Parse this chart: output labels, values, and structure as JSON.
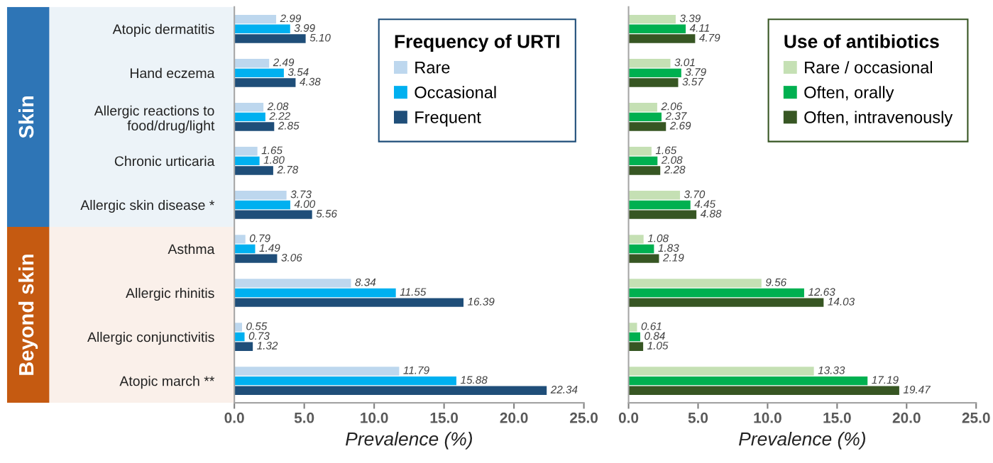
{
  "chart_data": [
    {
      "type": "bar",
      "orientation": "horizontal",
      "categories": [
        "Atopic dermatitis",
        "Hand eczema",
        "Allergic reactions to\nfood/drug/light",
        "Chronic urticaria",
        "Allergic skin disease *",
        "Asthma",
        "Allergic rhinitis",
        "Allergic conjunctivitis",
        "Atopic march **"
      ],
      "series": [
        {
          "name": "Rare",
          "color": "#bdd7ee",
          "values": [
            2.99,
            2.49,
            2.08,
            1.65,
            3.73,
            0.79,
            8.34,
            0.55,
            11.79
          ],
          "value_labels": [
            "2.99",
            "2.49",
            "2.08",
            "1.65",
            "3.73",
            "0.79",
            "8.34",
            "0.55",
            "11.79"
          ]
        },
        {
          "name": "Occasional",
          "color": "#00b0f0",
          "values": [
            3.99,
            3.54,
            2.22,
            1.8,
            4.0,
            1.49,
            11.55,
            0.73,
            15.88
          ],
          "value_labels": [
            "3.99",
            "3.54",
            "2.22",
            "1.80",
            "4.00",
            "1.49",
            "11.55",
            "0.73",
            "15.88"
          ]
        },
        {
          "name": "Frequent",
          "color": "#1f4e79",
          "values": [
            5.1,
            4.38,
            2.85,
            2.78,
            5.56,
            3.06,
            16.39,
            1.32,
            22.34
          ],
          "value_labels": [
            "5.10",
            "4.38",
            "2.85",
            "2.78",
            "5.56",
            "3.06",
            "16.39",
            "1.32",
            "22.34"
          ]
        }
      ],
      "legend_title": "Frequency of URTI",
      "legend": "top right",
      "xlabel": "Prevalence (%)",
      "xlim": [
        0,
        25
      ],
      "xticks": [
        {
          "value": 0,
          "label": "0.0"
        },
        {
          "value": 5,
          "label": "5.0"
        },
        {
          "value": 10,
          "label": "10.0"
        },
        {
          "value": 15,
          "label": "15.0"
        },
        {
          "value": 20,
          "label": "20.0"
        },
        {
          "value": 25,
          "label": "25.0"
        }
      ],
      "annotations": [
        "Skin",
        "Beyond skin"
      ]
    },
    {
      "type": "bar",
      "orientation": "horizontal",
      "categories": [
        null,
        null,
        null,
        null,
        null,
        null,
        null,
        null,
        null
      ],
      "series": [
        {
          "name": "Rare / occasional",
          "color": "#c5e0b4",
          "values": [
            3.39,
            3.01,
            2.06,
            1.65,
            3.7,
            1.08,
            9.56,
            0.61,
            13.33
          ],
          "value_labels": [
            "3.39",
            "3.01",
            "2.06",
            "1.65",
            "3.70",
            "1.08",
            "9.56",
            "0.61",
            "13.33"
          ]
        },
        {
          "name": "Often, orally",
          "color": "#00b050",
          "values": [
            4.11,
            3.79,
            2.37,
            2.08,
            4.45,
            1.83,
            12.63,
            0.84,
            17.19
          ],
          "value_labels": [
            "4.11",
            "3.79",
            "2.37",
            "2.08",
            "4.45",
            "1.83",
            "12.63",
            "0.84",
            "17.19"
          ]
        },
        {
          "name": "Often, intravenously",
          "color": "#375623",
          "values": [
            4.79,
            3.57,
            2.69,
            2.28,
            4.88,
            2.19,
            14.03,
            1.05,
            19.47
          ],
          "value_labels": [
            "4.79",
            "3.57",
            "2.69",
            "2.28",
            "4.88",
            "2.19",
            "14.03",
            "1.05",
            "19.47"
          ]
        }
      ],
      "legend_title": "Use of antibiotics",
      "legend": "top right",
      "xlabel": "Prevalence (%)",
      "xlim": [
        0,
        25
      ],
      "xticks": [
        {
          "value": 0,
          "label": "0.0"
        },
        {
          "value": 5,
          "label": "5.0"
        },
        {
          "value": 10,
          "label": "10.0"
        },
        {
          "value": 15,
          "label": "15.0"
        },
        {
          "value": 20,
          "label": "20.0"
        },
        {
          "value": 25,
          "label": "25.0"
        }
      ]
    }
  ]
}
